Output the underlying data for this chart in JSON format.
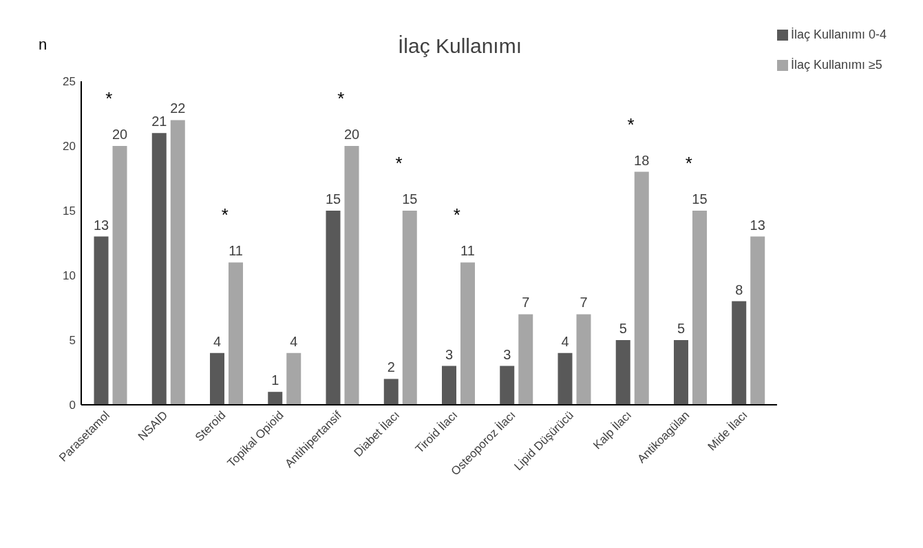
{
  "chart_data": {
    "type": "bar",
    "title": "İlaç Kullanımı",
    "ylabel": "n",
    "categories": [
      "Parasetamol",
      "NSAID",
      "Steroid",
      "Topikal Opioid",
      "Antihipertansif",
      "Diabet İlacı",
      "Tiroid İlacı",
      "Osteoporoz İlacı",
      "Lipid Düşürücü",
      "Kalp İlacı",
      "Antikoagülan",
      "Mide İlacı"
    ],
    "series": [
      {
        "name": "İlaç Kullanımı 0-4",
        "color": "#595959",
        "values": [
          13,
          21,
          4,
          1,
          15,
          2,
          3,
          3,
          4,
          5,
          5,
          8
        ]
      },
      {
        "name": "İlaç Kullanımı ≥5",
        "color": "#a6a6a6",
        "values": [
          20,
          22,
          11,
          4,
          20,
          15,
          11,
          7,
          7,
          18,
          15,
          13
        ],
        "value_labels": [
          "*\n20",
          "22",
          "*\n11",
          "4",
          "*\n20",
          "*\n15",
          "*\n11",
          "7",
          "7",
          "*\n18",
          "*\n15",
          "13"
        ]
      }
    ],
    "ylim": [
      0,
      25
    ],
    "yticks": [
      0,
      5,
      10,
      15,
      20,
      25
    ],
    "grid": false,
    "legend": "top right",
    "data_labels": true
  }
}
